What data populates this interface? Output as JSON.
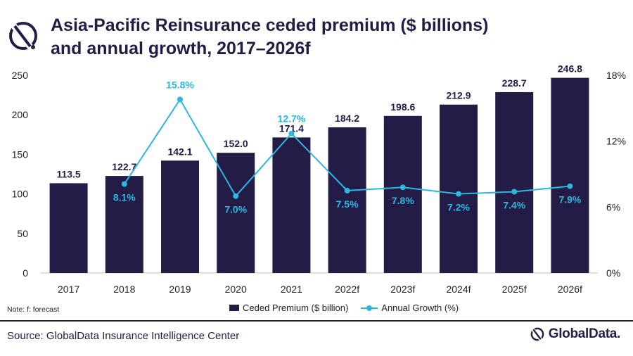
{
  "header": {
    "title_line1": "Asia-Pacific Reinsurance ceded premium ($ billions)",
    "title_line2": "and annual growth, 2017–2026f",
    "logo_icon": "globaldata-mark-icon"
  },
  "note": "Note: f: forecast",
  "source": "Source: GlobalData Insurance Intelligence Center",
  "brand": {
    "name": "GlobalData.",
    "icon": "globaldata-mark-icon"
  },
  "colors": {
    "bar": "#231c47",
    "line": "#2bb7e0",
    "label_dark": "#231c47",
    "label_light": "#2bb7e0",
    "axis_text": "#222222"
  },
  "chart_data": {
    "type": "bar",
    "categories": [
      "2017",
      "2018",
      "2019",
      "2020",
      "2021",
      "2022f",
      "2023f",
      "2024f",
      "2025f",
      "2026f"
    ],
    "series": [
      {
        "name": "Ceded Premium ($ billion)",
        "type": "bar",
        "axis": "left",
        "values": [
          113.5,
          122.7,
          142.1,
          152.0,
          171.4,
          184.2,
          198.6,
          212.9,
          228.7,
          246.8
        ],
        "labels": [
          "113.5",
          "122.7",
          "142.1",
          "152.0",
          "171.4",
          "184.2",
          "198.6",
          "212.9",
          "228.7",
          "246.8"
        ]
      },
      {
        "name": "Annual Growth (%)",
        "type": "line",
        "axis": "right",
        "values": [
          null,
          8.1,
          15.8,
          7.0,
          12.7,
          7.5,
          7.8,
          7.2,
          7.4,
          7.9
        ],
        "labels": [
          "",
          "8.1%",
          "15.8%",
          "7.0%",
          "12.7%",
          "7.5%",
          "7.8%",
          "7.2%",
          "7.4%",
          "7.9%"
        ]
      }
    ],
    "ylim_left": [
      0,
      250
    ],
    "yticks_left": [
      "0",
      "50",
      "100",
      "150",
      "200",
      "250"
    ],
    "ylim_right": [
      0,
      18
    ],
    "yticks_right": [
      "0%",
      "6%",
      "12%",
      "18%"
    ],
    "grid": false,
    "legend_position": "bottom"
  }
}
